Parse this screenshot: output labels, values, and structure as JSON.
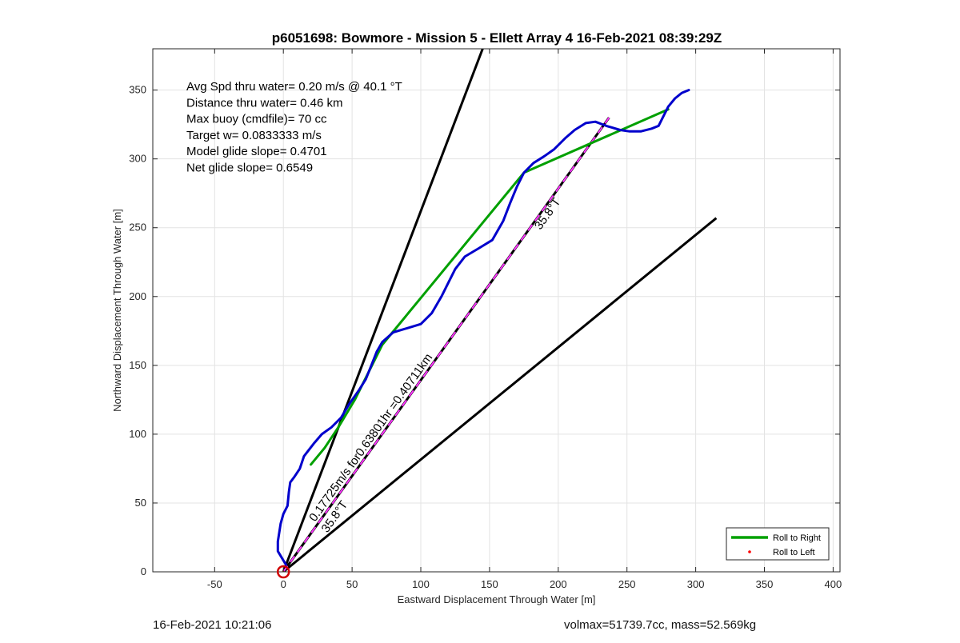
{
  "chart_data": {
    "type": "line",
    "title": "p6051698: Bowmore - Mission 5 - Ellett Array 4 16-Feb-2021 08:39:29Z",
    "xlabel": "Eastward Displacement Through Water [m]",
    "ylabel": "Northward Displacement Through Water [m]",
    "xlim": [
      -95,
      405
    ],
    "ylim": [
      0,
      380
    ],
    "xticks": [
      -50,
      0,
      50,
      100,
      150,
      200,
      250,
      300,
      350,
      400
    ],
    "yticks": [
      0,
      50,
      100,
      150,
      200,
      250,
      300,
      350
    ],
    "grid": true,
    "legend_position": "bottom-right",
    "legend": [
      {
        "label": "Roll to Right",
        "color": "#00a000",
        "marker": "line"
      },
      {
        "label": "Roll to Left",
        "color": "#ff0000",
        "marker": "dot"
      }
    ],
    "annotations": [
      "Avg Spd thru water=  0.20 m/s @  40.1 °T",
      "Distance thru water=  0.46 km",
      "Max buoy (cmdfile)= 70 cc",
      "Target w= 0.0833333 m/s",
      "Model glide slope= 0.4701",
      "Net glide slope= 0.6549"
    ],
    "rotated_labels": [
      {
        "text": "0.17725m/s for0.63801hr =0.40711km",
        "x": 23,
        "y": 36,
        "angle_deg": 54.5
      },
      {
        "text": "35.8°T",
        "x": 32,
        "y": 28,
        "angle_deg": 54.5
      },
      {
        "text": "35.8°T",
        "x": 187,
        "y": 248,
        "angle_deg": 54.5
      }
    ],
    "series": [
      {
        "name": "Roll to Right",
        "color": "#00a000",
        "points": [
          [
            20,
            78
          ],
          [
            30,
            90
          ],
          [
            40,
            105
          ],
          [
            52,
            125
          ],
          [
            62,
            145
          ],
          [
            72,
            165
          ],
          [
            175,
            290
          ],
          [
            280,
            336
          ]
        ]
      },
      {
        "color": "#0000cc",
        "points": [
          [
            2,
            5
          ],
          [
            -4,
            15
          ],
          [
            -4,
            22
          ],
          [
            -2,
            35
          ],
          [
            0,
            42
          ],
          [
            3,
            48
          ],
          [
            4,
            58
          ],
          [
            5,
            65
          ],
          [
            8,
            69
          ],
          [
            12,
            75
          ],
          [
            15,
            84
          ],
          [
            22,
            93
          ],
          [
            28,
            100
          ],
          [
            35,
            105
          ],
          [
            42,
            112
          ],
          [
            48,
            122
          ],
          [
            55,
            132
          ],
          [
            60,
            140
          ],
          [
            64,
            150
          ],
          [
            68,
            160
          ],
          [
            72,
            167
          ],
          [
            80,
            174
          ],
          [
            90,
            177
          ],
          [
            100,
            180
          ],
          [
            108,
            188
          ],
          [
            115,
            200
          ],
          [
            120,
            210
          ],
          [
            125,
            220
          ],
          [
            132,
            229
          ],
          [
            142,
            235
          ],
          [
            152,
            241
          ],
          [
            160,
            255
          ],
          [
            165,
            268
          ],
          [
            170,
            280
          ],
          [
            175,
            290
          ],
          [
            182,
            297
          ],
          [
            190,
            302
          ],
          [
            197,
            307
          ],
          [
            205,
            315
          ],
          [
            212,
            321
          ],
          [
            220,
            326
          ],
          [
            227,
            327
          ],
          [
            235,
            324
          ],
          [
            245,
            321
          ],
          [
            252,
            320
          ],
          [
            260,
            320
          ],
          [
            268,
            322
          ],
          [
            273,
            324
          ],
          [
            276,
            330
          ],
          [
            280,
            338
          ],
          [
            285,
            344
          ],
          [
            290,
            348
          ],
          [
            295,
            350
          ]
        ]
      },
      {
        "name": "Roll to Left",
        "color": "#ff0000",
        "points": [
          [
            0,
            0
          ]
        ]
      }
    ],
    "reference_lines": [
      {
        "color": "#000000",
        "from": [
          0,
          0
        ],
        "to": [
          145,
          380
        ]
      },
      {
        "color": "#000000",
        "from": [
          0,
          0
        ],
        "to": [
          315,
          257
        ]
      },
      {
        "color": "#000000",
        "from": [
          0,
          0
        ],
        "to": [
          237,
          330
        ],
        "overlay_color": "#ff33ff",
        "overlay_dashed": true
      }
    ],
    "start_marker": {
      "x": 0,
      "y": 0,
      "color": "#d00000"
    }
  },
  "footer": {
    "timestamp": "16-Feb-2021 10:21:06",
    "stats": "volmax=51739.7cc, mass=52.569kg"
  }
}
